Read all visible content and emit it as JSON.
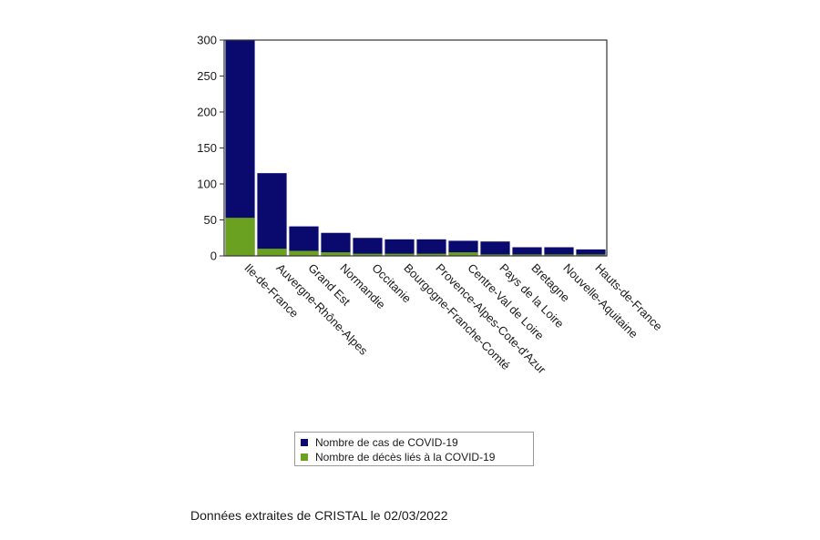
{
  "colors": {
    "cases": "#0a0a6e",
    "deaths": "#6aa121",
    "axis": "#333333"
  },
  "chart_data": {
    "type": "bar",
    "title": "",
    "xlabel": "",
    "ylabel": "",
    "ylim": [
      0,
      300
    ],
    "yticks": [
      0,
      50,
      100,
      150,
      200,
      250,
      300
    ],
    "grid": false,
    "legend_position": "bottom",
    "categories": [
      "Ile-de-France",
      "Auvergne-Rhône-Alpes",
      "Grand Est",
      "Normandie",
      "Occitanie",
      "Bourgogne-Franche-Comté",
      "Provence-Alpes-Cote-d'Azur",
      "Centre-Val de Loire",
      "Pays de la Loire",
      "Bretagne",
      "Nouvelle-Aquitaine",
      "Hauts-de-France"
    ],
    "series": [
      {
        "name": "Nombre de cas de COVID-19",
        "values": [
          300,
          115,
          41,
          32,
          25,
          23,
          23,
          21,
          20,
          12,
          12,
          9
        ]
      },
      {
        "name": "Nombre de décès liés à la COVID-19",
        "values": [
          53,
          10,
          7,
          5,
          3,
          3,
          3,
          5,
          2,
          2,
          2,
          2
        ]
      }
    ]
  },
  "source_note": "Données extraites de CRISTAL le 02/03/2022"
}
